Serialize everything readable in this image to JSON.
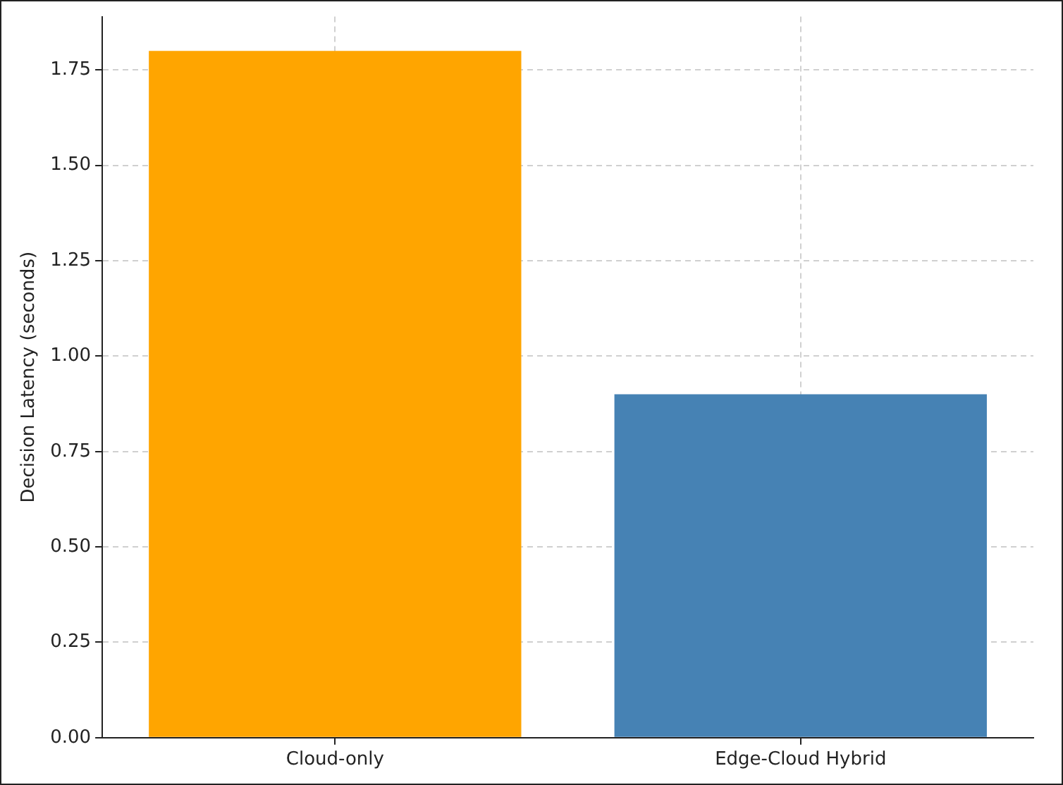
{
  "chart_data": {
    "type": "bar",
    "ylabel": "Decision Latency (seconds)",
    "categories": [
      "Cloud-only",
      "Edge-Cloud Hybrid"
    ],
    "values": [
      1.8,
      0.9
    ],
    "colors": [
      "#ffa500",
      "#4682b4"
    ],
    "ylim": [
      0,
      1.89
    ],
    "yticks": [
      {
        "value": 0,
        "label": "0.00"
      },
      {
        "value": 0.25,
        "label": "0.25"
      },
      {
        "value": 0.5,
        "label": "0.50"
      },
      {
        "value": 0.75,
        "label": "0.75"
      },
      {
        "value": 1,
        "label": "1.00"
      },
      {
        "value": 1.25,
        "label": "1.25"
      },
      {
        "value": 1.5,
        "label": "1.50"
      },
      {
        "value": 1.75,
        "label": "1.75"
      }
    ],
    "grid": true
  }
}
